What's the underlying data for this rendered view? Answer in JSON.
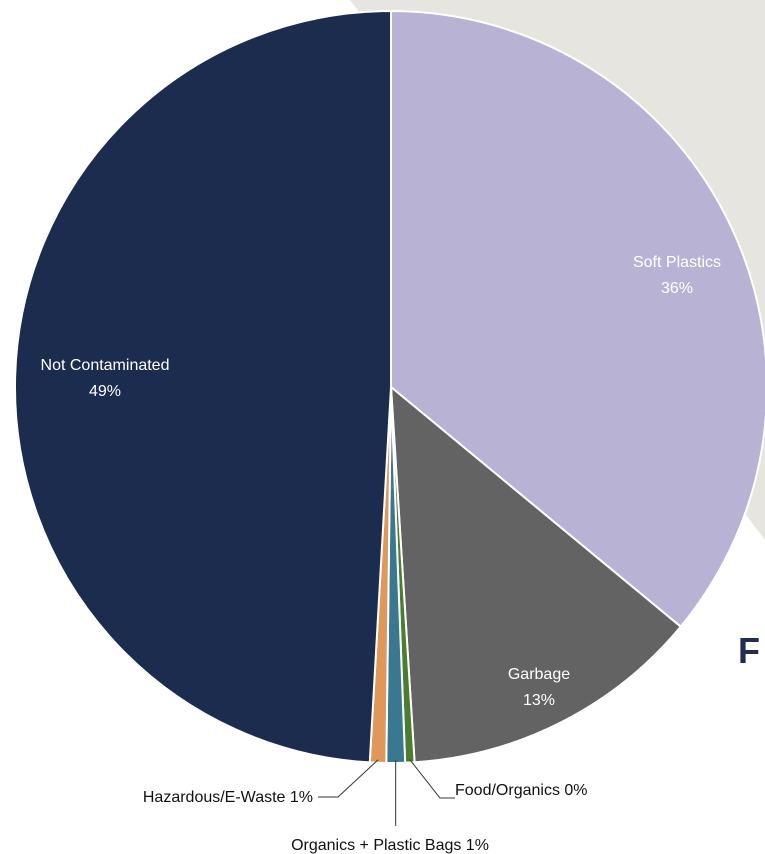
{
  "chart_data": {
    "type": "pie",
    "start_angle_deg": 0,
    "direction": "clockwise",
    "slices": [
      {
        "label": "Soft Plastics",
        "value": 36,
        "percent_label": "36%",
        "color": "#b8b3d4",
        "label_color": "#ffffff"
      },
      {
        "label": "Garbage",
        "value": 13,
        "percent_label": "13%",
        "color": "#636363",
        "label_color": "#ffffff"
      },
      {
        "label": "Food/Organics",
        "value": 0.4,
        "percent_label": "0%",
        "color": "#4a7d2e",
        "label_color": "#111111"
      },
      {
        "label": "Organics + Plastic Bags",
        "value": 0.8,
        "percent_label": "1%",
        "color": "#3a7891",
        "label_color": "#111111"
      },
      {
        "label": "Hazardous/E-Waste",
        "value": 0.7,
        "percent_label": "1%",
        "color": "#e0975a",
        "label_color": "#111111"
      },
      {
        "label": "Not Contaminated",
        "value": 49.1,
        "percent_label": "49%",
        "color": "#1b2c4e",
        "label_color": "#ffffff"
      }
    ],
    "background_color": "#e6e5e0"
  },
  "edge_text": "F"
}
